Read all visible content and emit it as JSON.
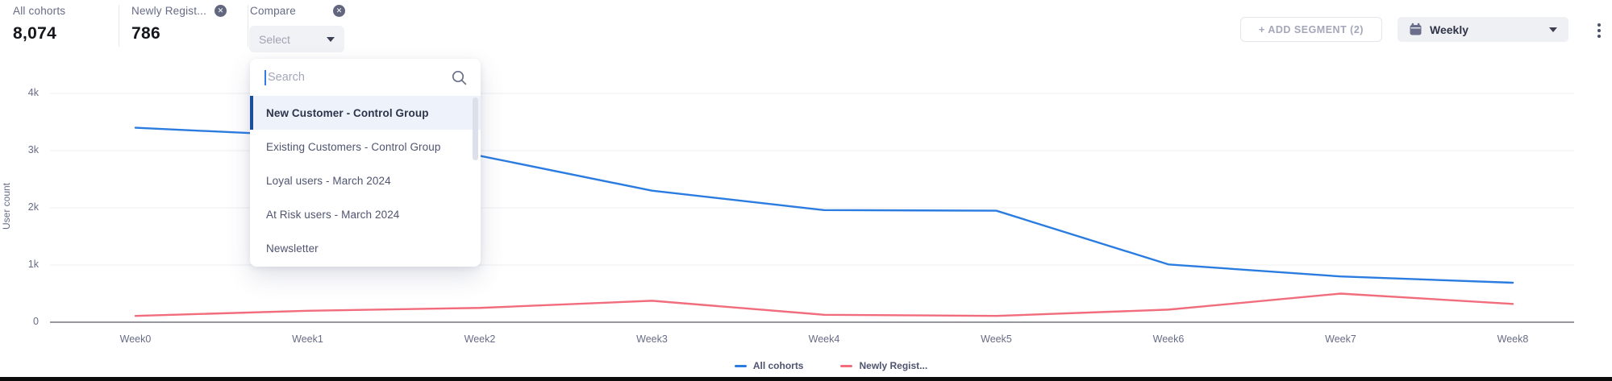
{
  "header": {
    "metrics": [
      {
        "label": "All cohorts",
        "value": "8,074",
        "removable": false
      },
      {
        "label": "Newly Regist...",
        "value": "786",
        "removable": true
      }
    ],
    "compare": {
      "label": "Compare",
      "select_placeholder": "Select",
      "removable": true
    },
    "add_segment_label": "+ ADD SEGMENT (2)",
    "granularity": {
      "value": "Weekly"
    }
  },
  "dropdown": {
    "search_placeholder": "Search",
    "options": [
      {
        "label": "New Customer - Control Group",
        "selected": true
      },
      {
        "label": "Existing Customers - Control Group",
        "selected": false
      },
      {
        "label": "Loyal users - March 2024",
        "selected": false
      },
      {
        "label": "At Risk users - March 2024",
        "selected": false
      },
      {
        "label": "Newsletter",
        "selected": false
      }
    ]
  },
  "chart_data": {
    "type": "line",
    "categories": [
      "Week0",
      "Week1",
      "Week2",
      "Week3",
      "Week4",
      "Week5",
      "Week6",
      "Week7",
      "Week8"
    ],
    "series": [
      {
        "name": "All cohorts",
        "color": "#2b7ce1",
        "values": [
          3400,
          3260,
          2910,
          2300,
          1960,
          1950,
          1010,
          800,
          690
        ]
      },
      {
        "name": "Newly Regist...",
        "color": "#f16c7c",
        "values": [
          110,
          200,
          250,
          375,
          130,
          110,
          220,
          500,
          320
        ]
      }
    ],
    "title": "",
    "xlabel": "",
    "ylabel": "User count",
    "ylim": [
      0,
      4000
    ],
    "yticks": [
      {
        "label": "4k",
        "value": 4000
      },
      {
        "label": "3k",
        "value": 3000
      },
      {
        "label": "2k",
        "value": 2000
      },
      {
        "label": "1k",
        "value": 1000
      },
      {
        "label": "0",
        "value": 0
      }
    ],
    "grid": true,
    "legend_position": "bottom"
  }
}
